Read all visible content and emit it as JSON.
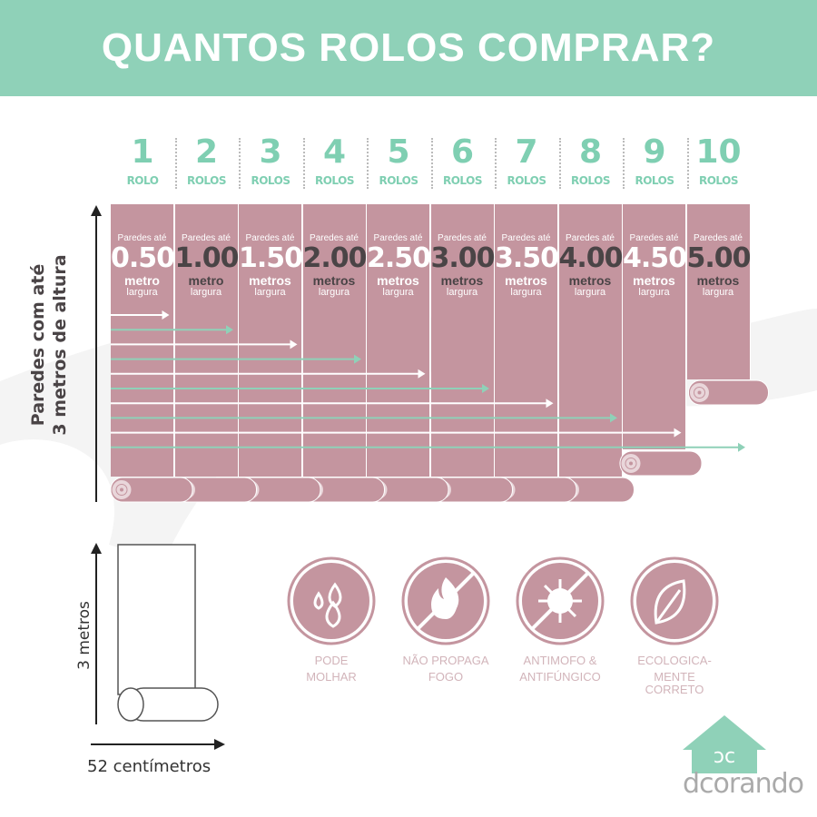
{
  "title": "QUANTOS ROLOS COMPRAR?",
  "columns": [
    {
      "num": "1",
      "unit": "ROLO",
      "prefix": "Paredes até",
      "value": "0.50",
      "measure": "metro",
      "width_word": "largura"
    },
    {
      "num": "2",
      "unit": "ROLOS",
      "prefix": "Paredes até",
      "value": "1.00",
      "measure": "metro",
      "width_word": "largura"
    },
    {
      "num": "3",
      "unit": "ROLOS",
      "prefix": "Paredes até",
      "value": "1.50",
      "measure": "metros",
      "width_word": "largura"
    },
    {
      "num": "4",
      "unit": "ROLOS",
      "prefix": "Paredes até",
      "value": "2.00",
      "measure": "metros",
      "width_word": "largura"
    },
    {
      "num": "5",
      "unit": "ROLOS",
      "prefix": "Paredes até",
      "value": "2.50",
      "measure": "metros",
      "width_word": "largura"
    },
    {
      "num": "6",
      "unit": "ROLOS",
      "prefix": "Paredes até",
      "value": "3.00",
      "measure": "metros",
      "width_word": "largura"
    },
    {
      "num": "7",
      "unit": "ROLOS",
      "prefix": "Paredes até",
      "value": "3.50",
      "measure": "metros",
      "width_word": "largura"
    },
    {
      "num": "8",
      "unit": "ROLOS",
      "prefix": "Paredes até",
      "value": "4.00",
      "measure": "metros",
      "width_word": "largura"
    },
    {
      "num": "9",
      "unit": "ROLOS",
      "prefix": "Paredes até",
      "value": "4.50",
      "measure": "metros",
      "width_word": "largura"
    },
    {
      "num": "10",
      "unit": "ROLOS",
      "prefix": "Paredes até",
      "value": "5.00",
      "measure": "metros",
      "width_word": "largura"
    }
  ],
  "vertical_label": {
    "line1": "Paredes com até",
    "line2": "3 metros de altura"
  },
  "roll_diagram": {
    "height": "3 metros",
    "width": "52 centímetros"
  },
  "features": [
    {
      "icon": "water-drops-icon",
      "line1": "PODE",
      "line2": "MOLHAR"
    },
    {
      "icon": "no-fire-icon",
      "line1": "NÃO PROPAGA",
      "line2": "FOGO"
    },
    {
      "icon": "no-virus-icon",
      "line1": "ANTIMOFO &",
      "line2": "ANTIFÚNGICO"
    },
    {
      "icon": "leaf-icon",
      "line1": "ECOLOGICA-",
      "line2": "MENTE CORRETO"
    }
  ],
  "logo": {
    "text": "dcorando",
    "mark": "dc"
  },
  "colors": {
    "mint": "#8fd1b8",
    "pink": "#c4959f",
    "dark": "#4a4446"
  }
}
